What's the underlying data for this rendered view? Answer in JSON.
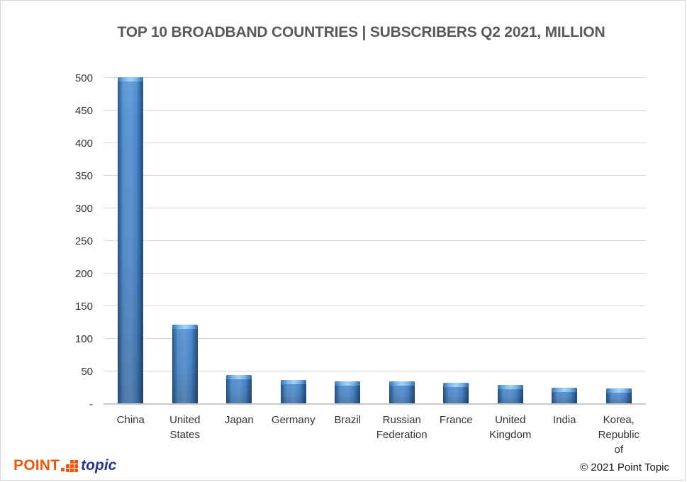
{
  "title": "TOP 10 BROADBAND COUNTRIES | SUBSCRIBERS Q2 2021, MILLION",
  "chart_data": {
    "type": "bar",
    "title": "TOP 10 BROADBAND COUNTRIES | SUBSCRIBERS Q2 2021, MILLION",
    "categories": [
      "China",
      "United States",
      "Japan",
      "Germany",
      "Brazil",
      "Russian Federation",
      "France",
      "United Kingdom",
      "India",
      "Korea, Republic of"
    ],
    "values": [
      500,
      121,
      44,
      36,
      34,
      34,
      31,
      28,
      24,
      23
    ],
    "xlabel": "",
    "ylabel": "",
    "ylim": [
      0,
      500
    ],
    "ytick_step": 50,
    "zero_tick_label": "-",
    "grid": true,
    "legend": "none",
    "bar_color": "#3f7cc1",
    "bar_edge_color": "#2a5a8e",
    "bar_highlight_color": "#a4d2f7",
    "gridline_color": "#d9d9d9",
    "axis_line_color": "#c9c9c9"
  },
  "footer": {
    "logo_point": "POINT",
    "logo_topic": "topic",
    "copyright": "© 2021  Point Topic"
  }
}
